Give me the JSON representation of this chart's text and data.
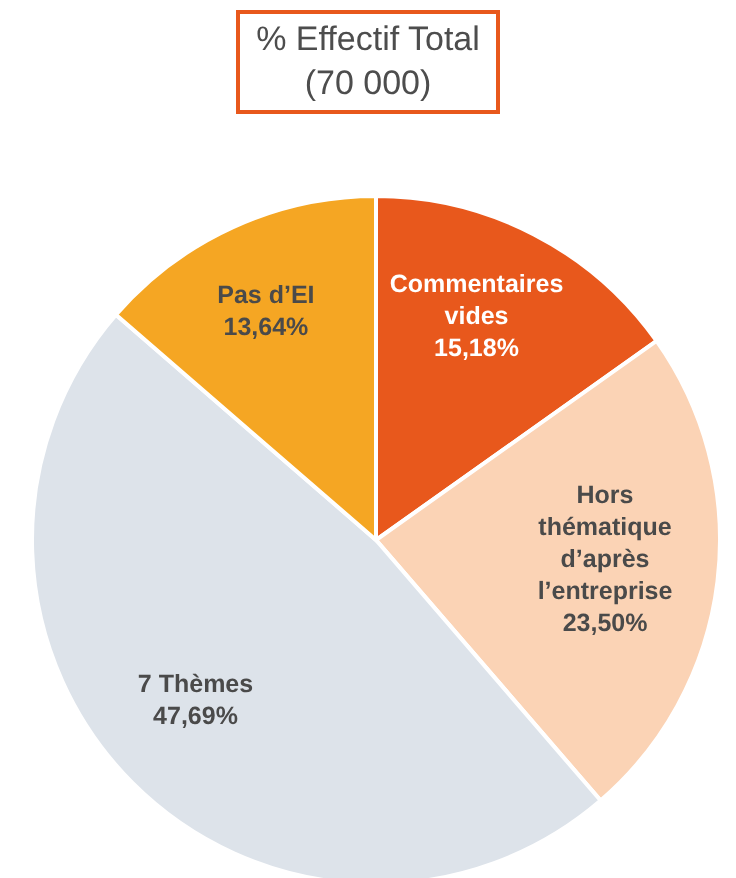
{
  "chart_data": {
    "type": "pie",
    "title": "% Effectif Total",
    "subtitle": "(70 000)",
    "categories": [
      "Commentaires vides",
      "Hors thématique d’après l’entreprise",
      "7 Thèmes",
      "Pas d’EI"
    ],
    "values": [
      15.18,
      23.5,
      47.69,
      13.64
    ],
    "value_labels": [
      "15,18%",
      "23,50%",
      "47,69%",
      "13,64%"
    ],
    "colors": [
      "#e8581c",
      "#fbd3b5",
      "#dde3ea",
      "#f5a623"
    ]
  }
}
